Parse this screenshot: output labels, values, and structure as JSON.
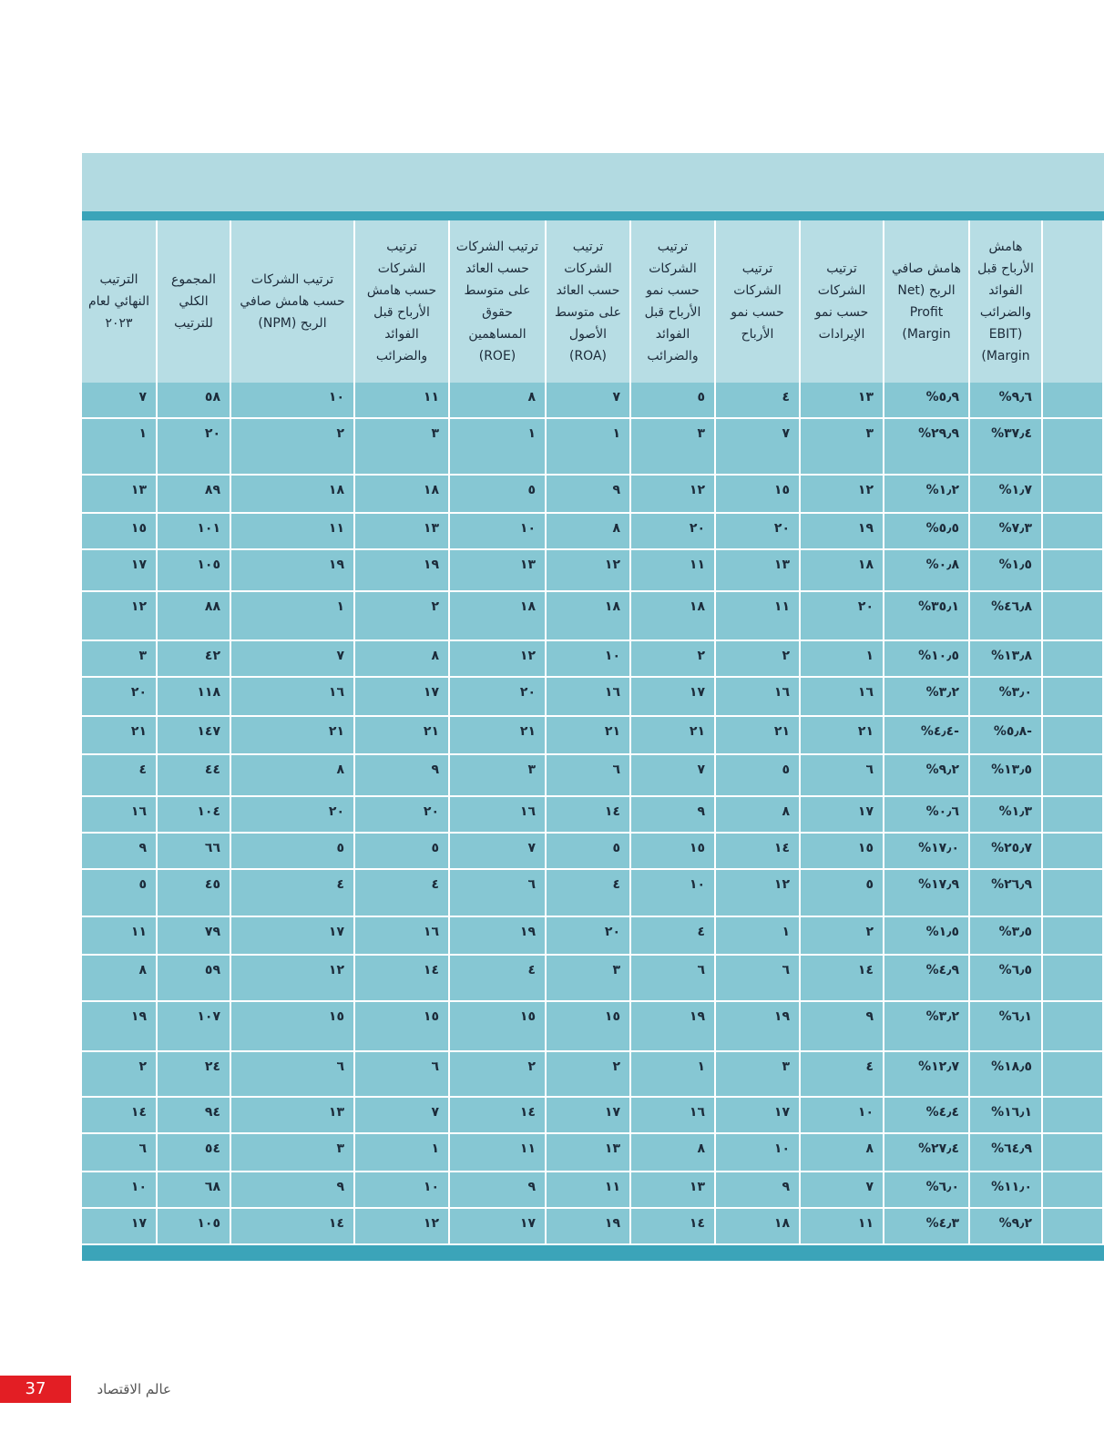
{
  "table": {
    "header": [
      "هامش الأرباح قبل الفوائد والضرائب (EBIT Margin)",
      "هامش صافي الربح (Net Profit Margin)",
      "ترتيب الشركات حسب نمو الإيرادات",
      "ترتيب الشركات حسب نمو الأرباح",
      "ترتيب الشركات حسب نمو الأرباح قبل الفوائد والضرائب",
      "ترتيب الشركات حسب العائد على متوسط الأصول (ROA)",
      "ترتيب الشركات حسب العائد على متوسط حقوق المساهمين (ROE)",
      "ترتيب الشركات حسب هامش الأرباح قبل الفوائد والضرائب",
      "ترتيب الشركات حسب هامش صافي الربح (NPM)",
      "المجموع الكلي للترتيب",
      "الترتيب النهائي لعام ٢٠٢٣"
    ],
    "rows": [
      [
        "%٩٫٦",
        "%٥٫٩",
        "١٣",
        "٤",
        "٥",
        "٧",
        "٨",
        "١١",
        "١٠",
        "٥٨",
        "٧"
      ],
      [
        "%٣٧٫٤",
        "%٢٩٫٩",
        "٣",
        "٧",
        "٣",
        "١",
        "١",
        "٣",
        "٢",
        "٢٠",
        "١"
      ],
      [
        "%١٫٧",
        "%١٫٢",
        "١٢",
        "١٥",
        "١٢",
        "٩",
        "٥",
        "١٨",
        "١٨",
        "٨٩",
        "١٣"
      ],
      [
        "%٧٫٣",
        "%٥٫٥",
        "١٩",
        "٢٠",
        "٢٠",
        "٨",
        "١٠",
        "١٣",
        "١١",
        "١٠١",
        "١٥"
      ],
      [
        "%١٫٥",
        "%٠٫٨",
        "١٨",
        "١٣",
        "١١",
        "١٢",
        "١٣",
        "١٩",
        "١٩",
        "١٠٥",
        "١٧"
      ],
      [
        "%٤٦٫٨",
        "%٣٥٫١",
        "٢٠",
        "١١",
        "١٨",
        "١٨",
        "١٨",
        "٢",
        "١",
        "٨٨",
        "١٢"
      ],
      [
        "%١٣٫٨",
        "%١٠٫٥",
        "١",
        "٢",
        "٢",
        "١٠",
        "١٢",
        "٨",
        "٧",
        "٤٢",
        "٣"
      ],
      [
        "%٣٫٠",
        "%٣٫٢",
        "١٦",
        "١٦",
        "١٧",
        "١٦",
        "٢٠",
        "١٧",
        "١٦",
        "١١٨",
        "٢٠"
      ],
      [
        "%٥٫٨-",
        "%٤٫٤-",
        "٢١",
        "٢١",
        "٢١",
        "٢١",
        "٢١",
        "٢١",
        "٢١",
        "١٤٧",
        "٢١"
      ],
      [
        "%١٣٫٥",
        "%٩٫٢",
        "٦",
        "٥",
        "٧",
        "٦",
        "٣",
        "٩",
        "٨",
        "٤٤",
        "٤"
      ],
      [
        "%١٫٣",
        "%٠٫٦",
        "١٧",
        "٨",
        "٩",
        "١٤",
        "١٦",
        "٢٠",
        "٢٠",
        "١٠٤",
        "١٦"
      ],
      [
        "%٢٥٫٧",
        "%١٧٫٠",
        "١٥",
        "١٤",
        "١٥",
        "٥",
        "٧",
        "٥",
        "٥",
        "٦٦",
        "٩"
      ],
      [
        "%٢٦٫٩",
        "%١٧٫٩",
        "٥",
        "١٢",
        "١٠",
        "٤",
        "٦",
        "٤",
        "٤",
        "٤٥",
        "٥"
      ],
      [
        "%٣٫٥",
        "%١٫٥",
        "٢",
        "١",
        "٤",
        "٢٠",
        "١٩",
        "١٦",
        "١٧",
        "٧٩",
        "١١"
      ],
      [
        "%٦٫٥",
        "%٤٫٩",
        "١٤",
        "٦",
        "٦",
        "٣",
        "٤",
        "١٤",
        "١٢",
        "٥٩",
        "٨"
      ],
      [
        "%٦٫١",
        "%٣٫٢",
        "٩",
        "١٩",
        "١٩",
        "١٥",
        "١٥",
        "١٥",
        "١٥",
        "١٠٧",
        "١٩"
      ],
      [
        "%١٨٫٥",
        "%١٢٫٧",
        "٤",
        "٣",
        "١",
        "٢",
        "٢",
        "٦",
        "٦",
        "٢٤",
        "٢"
      ],
      [
        "%١٦٫١",
        "%٤٫٤",
        "١٠",
        "١٧",
        "١٦",
        "١٧",
        "١٤",
        "٧",
        "١٣",
        "٩٤",
        "١٤"
      ],
      [
        "%٦٤٫٩",
        "%٢٧٫٤",
        "٨",
        "١٠",
        "٨",
        "١٣",
        "١١",
        "١",
        "٣",
        "٥٤",
        "٦"
      ],
      [
        "%١١٫٠",
        "%٦٫٠",
        "٧",
        "٩",
        "١٣",
        "١١",
        "٩",
        "١٠",
        "٩",
        "٦٨",
        "١٠"
      ],
      [
        "%٩٫٢",
        "%٤٫٣",
        "١١",
        "١٨",
        "١٤",
        "١٩",
        "١٧",
        "١٢",
        "١٤",
        "١٠٥",
        "١٧"
      ]
    ]
  },
  "footer": {
    "page_number": "37",
    "magazine": "عالم الاقتصاد"
  }
}
